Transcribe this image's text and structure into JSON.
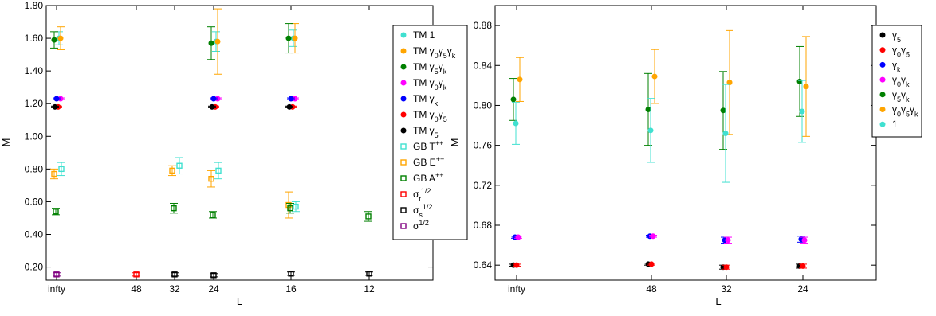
{
  "chart_data": [
    {
      "type": "scatter",
      "title": "",
      "xlabel": "L",
      "ylabel": "M",
      "categories": [
        "infty",
        "48",
        "32",
        "24",
        "16",
        "12"
      ],
      "ylim": [
        0.12,
        1.8
      ],
      "yticks": [
        "0.20",
        "0.40",
        "0.60",
        "0.80",
        "1.00",
        "1.20",
        "1.40",
        "1.60",
        "1.80"
      ],
      "legend_position": "right",
      "series": [
        {
          "name": "TM 1",
          "color": "#40e0d0",
          "marker": "circle",
          "points": [
            {
              "x": "infty",
              "y": 1.6,
              "err": 0.04
            },
            {
              "x": "24",
              "y": 1.58,
              "err": 0.06
            },
            {
              "x": "16",
              "y": 1.6,
              "err": 0.05
            }
          ]
        },
        {
          "name": "TM γ0γ5γk",
          "color": "#ffa500",
          "marker": "circle",
          "points": [
            {
              "x": "infty",
              "y": 1.6,
              "err": 0.07
            },
            {
              "x": "24",
              "y": 1.58,
              "err": 0.2
            },
            {
              "x": "16",
              "y": 1.6,
              "err": 0.09
            }
          ]
        },
        {
          "name": "TM γ5γk",
          "color": "#008000",
          "marker": "circle",
          "points": [
            {
              "x": "infty",
              "y": 1.59,
              "err": 0.05
            },
            {
              "x": "24",
              "y": 1.57,
              "err": 0.1
            },
            {
              "x": "16",
              "y": 1.6,
              "err": 0.09
            }
          ]
        },
        {
          "name": "TM γ0γk",
          "color": "#ff00ff",
          "marker": "circle",
          "points": [
            {
              "x": "infty",
              "y": 1.23,
              "err": 0.005
            },
            {
              "x": "24",
              "y": 1.23,
              "err": 0.005
            },
            {
              "x": "16",
              "y": 1.23,
              "err": 0.005
            }
          ]
        },
        {
          "name": "TM γk",
          "color": "#0000ff",
          "marker": "circle",
          "points": [
            {
              "x": "infty",
              "y": 1.23,
              "err": 0.005
            },
            {
              "x": "24",
              "y": 1.23,
              "err": 0.005
            },
            {
              "x": "16",
              "y": 1.23,
              "err": 0.005
            }
          ]
        },
        {
          "name": "TM γ0γ5",
          "color": "#ff0000",
          "marker": "circle",
          "points": [
            {
              "x": "infty",
              "y": 1.18,
              "err": 0.005
            },
            {
              "x": "24",
              "y": 1.18,
              "err": 0.005
            },
            {
              "x": "16",
              "y": 1.18,
              "err": 0.005
            }
          ]
        },
        {
          "name": "TM γ5",
          "color": "#000000",
          "marker": "circle",
          "points": [
            {
              "x": "infty",
              "y": 1.18,
              "err": 0.005
            },
            {
              "x": "24",
              "y": 1.18,
              "err": 0.005
            },
            {
              "x": "16",
              "y": 1.18,
              "err": 0.005
            }
          ]
        },
        {
          "name": "GB T++",
          "color": "#40e0d0",
          "marker": "square",
          "points": [
            {
              "x": "infty",
              "y": 0.8,
              "err": 0.04
            },
            {
              "x": "32",
              "y": 0.82,
              "err": 0.05
            },
            {
              "x": "24",
              "y": 0.79,
              "err": 0.05
            },
            {
              "x": "16",
              "y": 0.57,
              "err": 0.03
            }
          ]
        },
        {
          "name": "GB E++",
          "color": "#ffa500",
          "marker": "square",
          "points": [
            {
              "x": "infty",
              "y": 0.77,
              "err": 0.03
            },
            {
              "x": "32",
              "y": 0.79,
              "err": 0.03
            },
            {
              "x": "24",
              "y": 0.74,
              "err": 0.05
            },
            {
              "x": "16",
              "y": 0.58,
              "err": 0.08
            }
          ]
        },
        {
          "name": "GB A++",
          "color": "#008000",
          "marker": "square",
          "points": [
            {
              "x": "infty",
              "y": 0.54,
              "err": 0.02
            },
            {
              "x": "32",
              "y": 0.56,
              "err": 0.03
            },
            {
              "x": "24",
              "y": 0.52,
              "err": 0.02
            },
            {
              "x": "16",
              "y": 0.56,
              "err": 0.03
            },
            {
              "x": "12",
              "y": 0.51,
              "err": 0.03
            }
          ]
        },
        {
          "name": "σt1/2",
          "color": "#ff0000",
          "marker": "square",
          "points": [
            {
              "x": "48",
              "y": 0.155,
              "err": 0.01
            }
          ]
        },
        {
          "name": "σs1/2",
          "color": "#000000",
          "marker": "square",
          "points": [
            {
              "x": "32",
              "y": 0.155,
              "err": 0.01
            },
            {
              "x": "24",
              "y": 0.15,
              "err": 0.01
            },
            {
              "x": "16",
              "y": 0.16,
              "err": 0.01
            },
            {
              "x": "12",
              "y": 0.16,
              "err": 0.01
            }
          ]
        },
        {
          "name": "σ1/2",
          "color": "#800080",
          "marker": "square",
          "points": [
            {
              "x": "infty",
              "y": 0.155,
              "err": 0.01
            }
          ]
        }
      ],
      "legend": [
        {
          "prefix": "TM",
          "parts": [
            [
              "1",
              null
            ]
          ]
        },
        {
          "prefix": "TM",
          "parts": [
            [
              "γ",
              null
            ],
            [
              "0",
              "sub"
            ],
            [
              "γ",
              null
            ],
            [
              "5",
              "sub"
            ],
            [
              "γ",
              null
            ],
            [
              "k",
              "sub"
            ]
          ]
        },
        {
          "prefix": "TM",
          "parts": [
            [
              "γ",
              null
            ],
            [
              "5",
              "sub"
            ],
            [
              "γ",
              null
            ],
            [
              "k",
              "sub"
            ]
          ]
        },
        {
          "prefix": "TM",
          "parts": [
            [
              "γ",
              null
            ],
            [
              "0",
              "sub"
            ],
            [
              "γ",
              null
            ],
            [
              "k",
              "sub"
            ]
          ]
        },
        {
          "prefix": "TM",
          "parts": [
            [
              "γ",
              null
            ],
            [
              "k",
              "sub"
            ]
          ]
        },
        {
          "prefix": "TM",
          "parts": [
            [
              "γ",
              null
            ],
            [
              "0",
              "sub"
            ],
            [
              "γ",
              null
            ],
            [
              "5",
              "sub"
            ]
          ]
        },
        {
          "prefix": "TM",
          "parts": [
            [
              "γ",
              null
            ],
            [
              "5",
              "sub"
            ]
          ]
        },
        {
          "prefix": "GB",
          "parts": [
            [
              "T",
              null
            ],
            [
              "++",
              "sup"
            ]
          ]
        },
        {
          "prefix": "GB",
          "parts": [
            [
              "E",
              null
            ],
            [
              "++",
              "sup"
            ]
          ]
        },
        {
          "prefix": "GB",
          "parts": [
            [
              "A",
              null
            ],
            [
              "++",
              "sup"
            ]
          ]
        },
        {
          "prefix": "",
          "parts": [
            [
              "σ",
              null
            ],
            [
              "t",
              "sub"
            ],
            [
              "1/2",
              "sup"
            ]
          ]
        },
        {
          "prefix": "",
          "parts": [
            [
              "σ",
              null
            ],
            [
              "s",
              "sub"
            ],
            [
              "1/2",
              "sup"
            ]
          ]
        },
        {
          "prefix": "",
          "parts": [
            [
              "σ",
              null
            ],
            [
              "1/2",
              "sup"
            ]
          ]
        }
      ]
    },
    {
      "type": "scatter",
      "title": "",
      "xlabel": "L",
      "ylabel": "M",
      "categories": [
        "infty",
        "48",
        "32",
        "24"
      ],
      "ylim": [
        0.625,
        0.9
      ],
      "yticks": [
        "0.64",
        "0.68",
        "0.72",
        "0.76",
        "0.80",
        "0.84",
        "0.88"
      ],
      "legend_position": "top-right",
      "series": [
        {
          "name": "γ5",
          "color": "#000000",
          "marker": "circle",
          "points": [
            {
              "x": "infty",
              "y": 0.64,
              "err": 0.001
            },
            {
              "x": "48",
              "y": 0.641,
              "err": 0.001
            },
            {
              "x": "32",
              "y": 0.638,
              "err": 0.002
            },
            {
              "x": "24",
              "y": 0.639,
              "err": 0.002
            }
          ]
        },
        {
          "name": "γ0γ5",
          "color": "#ff0000",
          "marker": "circle",
          "points": [
            {
              "x": "infty",
              "y": 0.64,
              "err": 0.001
            },
            {
              "x": "48",
              "y": 0.641,
              "err": 0.001
            },
            {
              "x": "32",
              "y": 0.638,
              "err": 0.002
            },
            {
              "x": "24",
              "y": 0.639,
              "err": 0.002
            }
          ]
        },
        {
          "name": "γk",
          "color": "#0000ff",
          "marker": "circle",
          "points": [
            {
              "x": "infty",
              "y": 0.668,
              "err": 0.001
            },
            {
              "x": "48",
              "y": 0.669,
              "err": 0.001
            },
            {
              "x": "32",
              "y": 0.665,
              "err": 0.003
            },
            {
              "x": "24",
              "y": 0.666,
              "err": 0.003
            }
          ]
        },
        {
          "name": "γ0γk",
          "color": "#ff00ff",
          "marker": "circle",
          "points": [
            {
              "x": "infty",
              "y": 0.668,
              "err": 0.001
            },
            {
              "x": "48",
              "y": 0.669,
              "err": 0.001
            },
            {
              "x": "32",
              "y": 0.665,
              "err": 0.003
            },
            {
              "x": "24",
              "y": 0.665,
              "err": 0.003
            }
          ]
        },
        {
          "name": "γ5γk",
          "color": "#008000",
          "marker": "circle",
          "points": [
            {
              "x": "infty",
              "y": 0.806,
              "err": 0.021
            },
            {
              "x": "48",
              "y": 0.796,
              "err": 0.036
            },
            {
              "x": "32",
              "y": 0.795,
              "err": 0.039
            },
            {
              "x": "24",
              "y": 0.824,
              "err": 0.035
            }
          ]
        },
        {
          "name": "γ0γ5γk",
          "color": "#ffa500",
          "marker": "circle",
          "points": [
            {
              "x": "infty",
              "y": 0.826,
              "err": 0.022
            },
            {
              "x": "48",
              "y": 0.829,
              "err": 0.027
            },
            {
              "x": "32",
              "y": 0.823,
              "err": 0.052
            },
            {
              "x": "24",
              "y": 0.819,
              "err": 0.05
            }
          ]
        },
        {
          "name": "1",
          "color": "#40e0d0",
          "marker": "circle",
          "points": [
            {
              "x": "infty",
              "y": 0.782,
              "err": 0.021
            },
            {
              "x": "48",
              "y": 0.775,
              "err": 0.032
            },
            {
              "x": "32",
              "y": 0.772,
              "err": 0.049
            },
            {
              "x": "24",
              "y": 0.794,
              "err": 0.031
            }
          ]
        }
      ],
      "legend": [
        {
          "prefix": "",
          "parts": [
            [
              "γ",
              null
            ],
            [
              "5",
              "sub"
            ]
          ]
        },
        {
          "prefix": "",
          "parts": [
            [
              "γ",
              null
            ],
            [
              "0",
              "sub"
            ],
            [
              "γ",
              null
            ],
            [
              "5",
              "sub"
            ]
          ]
        },
        {
          "prefix": "",
          "parts": [
            [
              "γ",
              null
            ],
            [
              "k",
              "sub"
            ]
          ]
        },
        {
          "prefix": "",
          "parts": [
            [
              "γ",
              null
            ],
            [
              "0",
              "sub"
            ],
            [
              "γ",
              null
            ],
            [
              "k",
              "sub"
            ]
          ]
        },
        {
          "prefix": "",
          "parts": [
            [
              "γ",
              null
            ],
            [
              "5",
              "sub"
            ],
            [
              "γ",
              null
            ],
            [
              "k",
              "sub"
            ]
          ]
        },
        {
          "prefix": "",
          "parts": [
            [
              "γ",
              null
            ],
            [
              "0",
              "sub"
            ],
            [
              "γ",
              null
            ],
            [
              "5",
              "sub"
            ],
            [
              "γ",
              null
            ],
            [
              "k",
              "sub"
            ]
          ]
        },
        {
          "prefix": "",
          "parts": [
            [
              "1",
              null
            ]
          ]
        }
      ]
    }
  ]
}
